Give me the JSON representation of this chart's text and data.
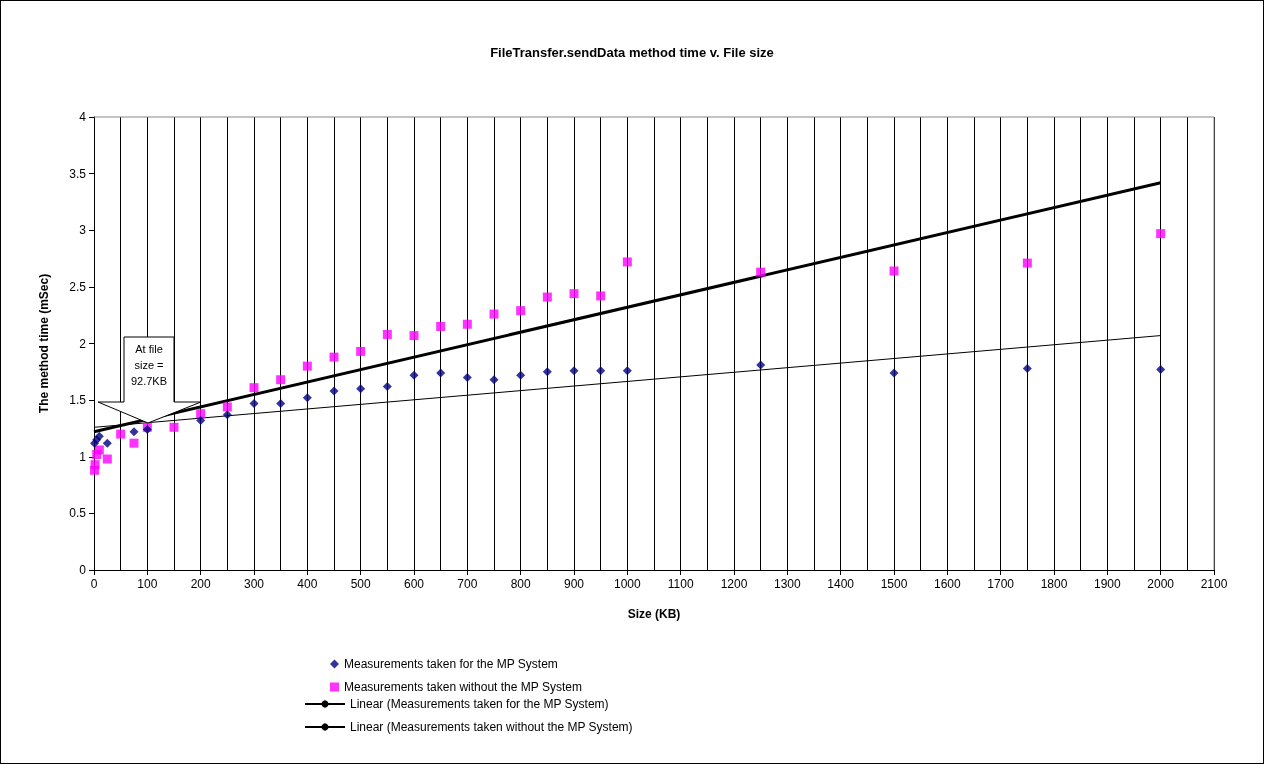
{
  "chart_data": {
    "type": "scatter",
    "title": "FileTransfer.sendData method time v. File size",
    "xlabel": "Size (KB)",
    "ylabel": "The method time (mSec)",
    "xlim": [
      0,
      2100
    ],
    "xticks": [
      0,
      {
        "value": 50,
        "label": null
      },
      100,
      {
        "value": 150,
        "label": null
      },
      200,
      {
        "value": 250,
        "label": null
      },
      300,
      {
        "value": 350,
        "label": null
      },
      400,
      {
        "value": 450,
        "label": null
      },
      500,
      {
        "value": 550,
        "label": null
      },
      600,
      {
        "value": 650,
        "label": null
      },
      700,
      {
        "value": 750,
        "label": null
      },
      800,
      {
        "value": 850,
        "label": null
      },
      900,
      {
        "value": 950,
        "label": null
      },
      1000,
      {
        "value": 1050,
        "label": null
      },
      1100,
      {
        "value": 1150,
        "label": null
      },
      1200,
      {
        "value": 1250,
        "label": null
      },
      1300,
      {
        "value": 1350,
        "label": null
      },
      1400,
      {
        "value": 1450,
        "label": null
      },
      1500,
      {
        "value": 1550,
        "label": null
      },
      1600,
      {
        "value": 1650,
        "label": null
      },
      1700,
      {
        "value": 1750,
        "label": null
      },
      1800,
      {
        "value": 1850,
        "label": null
      },
      1900,
      {
        "value": 1950,
        "label": null
      },
      2000,
      {
        "value": 2050,
        "label": null
      },
      2100
    ],
    "ylim": [
      0,
      4
    ],
    "yticks": [
      0,
      0.5,
      1,
      1.5,
      2,
      2.5,
      3,
      3.5,
      4
    ],
    "grid": "x",
    "legend": "bottom",
    "series": [
      {
        "name": "Measurements taken for the MP System",
        "type": "scatter",
        "marker": "diamond",
        "color": "#000080",
        "x": [
          1,
          5,
          10,
          25,
          75,
          100,
          200,
          250,
          300,
          350,
          400,
          450,
          500,
          550,
          600,
          650,
          700,
          750,
          800,
          850,
          900,
          950,
          1000,
          1250,
          1500,
          1750,
          2000
        ],
        "values": [
          1.12,
          1.15,
          1.18,
          1.12,
          1.22,
          1.24,
          1.32,
          1.37,
          1.47,
          1.47,
          1.52,
          1.58,
          1.6,
          1.62,
          1.72,
          1.74,
          1.7,
          1.68,
          1.72,
          1.75,
          1.76,
          1.76,
          1.76,
          1.81,
          1.74,
          1.78,
          1.77
        ]
      },
      {
        "name": "Measurements taken without the MP System",
        "type": "scatter",
        "marker": "square",
        "color": "#ff00ff",
        "x": [
          1,
          2,
          5,
          10,
          25,
          50,
          75,
          100,
          150,
          200,
          250,
          300,
          350,
          400,
          450,
          500,
          550,
          600,
          650,
          700,
          750,
          800,
          850,
          900,
          950,
          1000,
          1250,
          1500,
          1750,
          2000
        ],
        "values": [
          0.88,
          0.93,
          1.02,
          1.06,
          0.98,
          1.2,
          1.12,
          1.26,
          1.26,
          1.38,
          1.44,
          1.61,
          1.68,
          1.8,
          1.88,
          1.93,
          2.08,
          2.07,
          2.15,
          2.17,
          2.26,
          2.29,
          2.41,
          2.44,
          2.42,
          2.72,
          2.63,
          2.64,
          2.71,
          2.97
        ]
      },
      {
        "name": "Linear (Measurements taken for the MP System)",
        "type": "line",
        "marker": "none",
        "line_style": "solid",
        "color": "#000000",
        "x": [
          0,
          2000
        ],
        "values": [
          1.26,
          2.07
        ]
      },
      {
        "name": "Linear (Measurements taken without the MP System)",
        "type": "line",
        "marker": "none",
        "line_style": "solid",
        "color": "#000000",
        "x": [
          0,
          2000
        ],
        "values": [
          1.22,
          3.42
        ]
      }
    ],
    "annotations": [
      "At file size = 92.7KB"
    ]
  }
}
